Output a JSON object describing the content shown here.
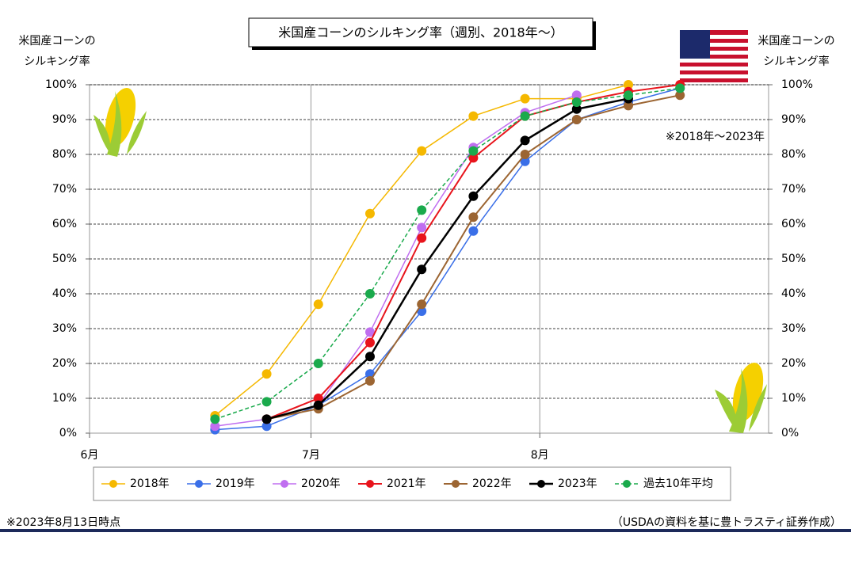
{
  "chart_data": {
    "type": "line",
    "title": "米国産コーンのシルキング率（週別、2018年～）",
    "y_label_lines": [
      "米国産コーンの",
      "シルキング率"
    ],
    "y2_label_lines": [
      "米国産コーンの",
      "シルキング率"
    ],
    "annotation": "※2018年～2023年",
    "footnote": "※2023年8月13日時点",
    "source": "（USDAの資料を基に豊トラスティ証券作成）",
    "x": [
      17,
      24,
      31,
      38,
      45,
      52,
      59,
      66,
      73,
      80
    ],
    "xlim": [
      0,
      92
    ],
    "xticks": [
      {
        "value": 0,
        "label": "6月"
      },
      {
        "value": 30,
        "label": "7月"
      },
      {
        "value": 61,
        "label": "8月"
      }
    ],
    "ylim": [
      0,
      100
    ],
    "yticks": [
      {
        "value": 0,
        "label": "0%"
      },
      {
        "value": 10,
        "label": "10%"
      },
      {
        "value": 20,
        "label": "20%"
      },
      {
        "value": 30,
        "label": "30%"
      },
      {
        "value": 40,
        "label": "40%"
      },
      {
        "value": 50,
        "label": "50%"
      },
      {
        "value": 60,
        "label": "60%"
      },
      {
        "value": 70,
        "label": "70%"
      },
      {
        "value": 80,
        "label": "80%"
      },
      {
        "value": 90,
        "label": "90%"
      },
      {
        "value": 100,
        "label": "100%"
      }
    ],
    "y2lim": [
      0,
      100
    ],
    "y2ticks": [
      {
        "value": 0,
        "label": "0%"
      },
      {
        "value": 10,
        "label": "10%"
      },
      {
        "value": 20,
        "label": "20%"
      },
      {
        "value": 30,
        "label": "30%"
      },
      {
        "value": 40,
        "label": "40%"
      },
      {
        "value": 50,
        "label": "50%"
      },
      {
        "value": 60,
        "label": "60%"
      },
      {
        "value": 70,
        "label": "70%"
      },
      {
        "value": 80,
        "label": "80%"
      },
      {
        "value": 90,
        "label": "90%"
      },
      {
        "value": 100,
        "label": "100%"
      }
    ],
    "series": [
      {
        "name": "2018年",
        "color": "#f5b800",
        "width": 1.5,
        "dashed": false,
        "values": [
          5,
          17,
          37,
          63,
          81,
          91,
          96,
          96,
          100,
          null
        ]
      },
      {
        "name": "2019年",
        "color": "#3a6fe8",
        "width": 1.5,
        "dashed": false,
        "values": [
          1,
          2,
          8,
          17,
          35,
          58,
          78,
          90,
          95,
          99
        ]
      },
      {
        "name": "2020年",
        "color": "#c06ef0",
        "width": 1.5,
        "dashed": false,
        "values": [
          2,
          4,
          8,
          29,
          59,
          82,
          92,
          97,
          null,
          null
        ]
      },
      {
        "name": "2021年",
        "color": "#e8141c",
        "width": 2,
        "dashed": false,
        "values": [
          null,
          4,
          10,
          26,
          56,
          79,
          91,
          95,
          98,
          100
        ]
      },
      {
        "name": "2022年",
        "color": "#9c6532",
        "width": 2,
        "dashed": false,
        "values": [
          null,
          4,
          7,
          15,
          37,
          62,
          80,
          90,
          94,
          97
        ]
      },
      {
        "name": "2023年",
        "color": "#000000",
        "width": 2.5,
        "dashed": false,
        "values": [
          null,
          4,
          8,
          22,
          47,
          68,
          84,
          93,
          96,
          null
        ]
      },
      {
        "name": "過去10年平均",
        "color": "#1aaa4c",
        "width": 1.5,
        "dashed": true,
        "values": [
          4,
          9,
          20,
          40,
          64,
          81,
          91,
          95,
          97,
          99
        ]
      }
    ],
    "grid": true
  }
}
